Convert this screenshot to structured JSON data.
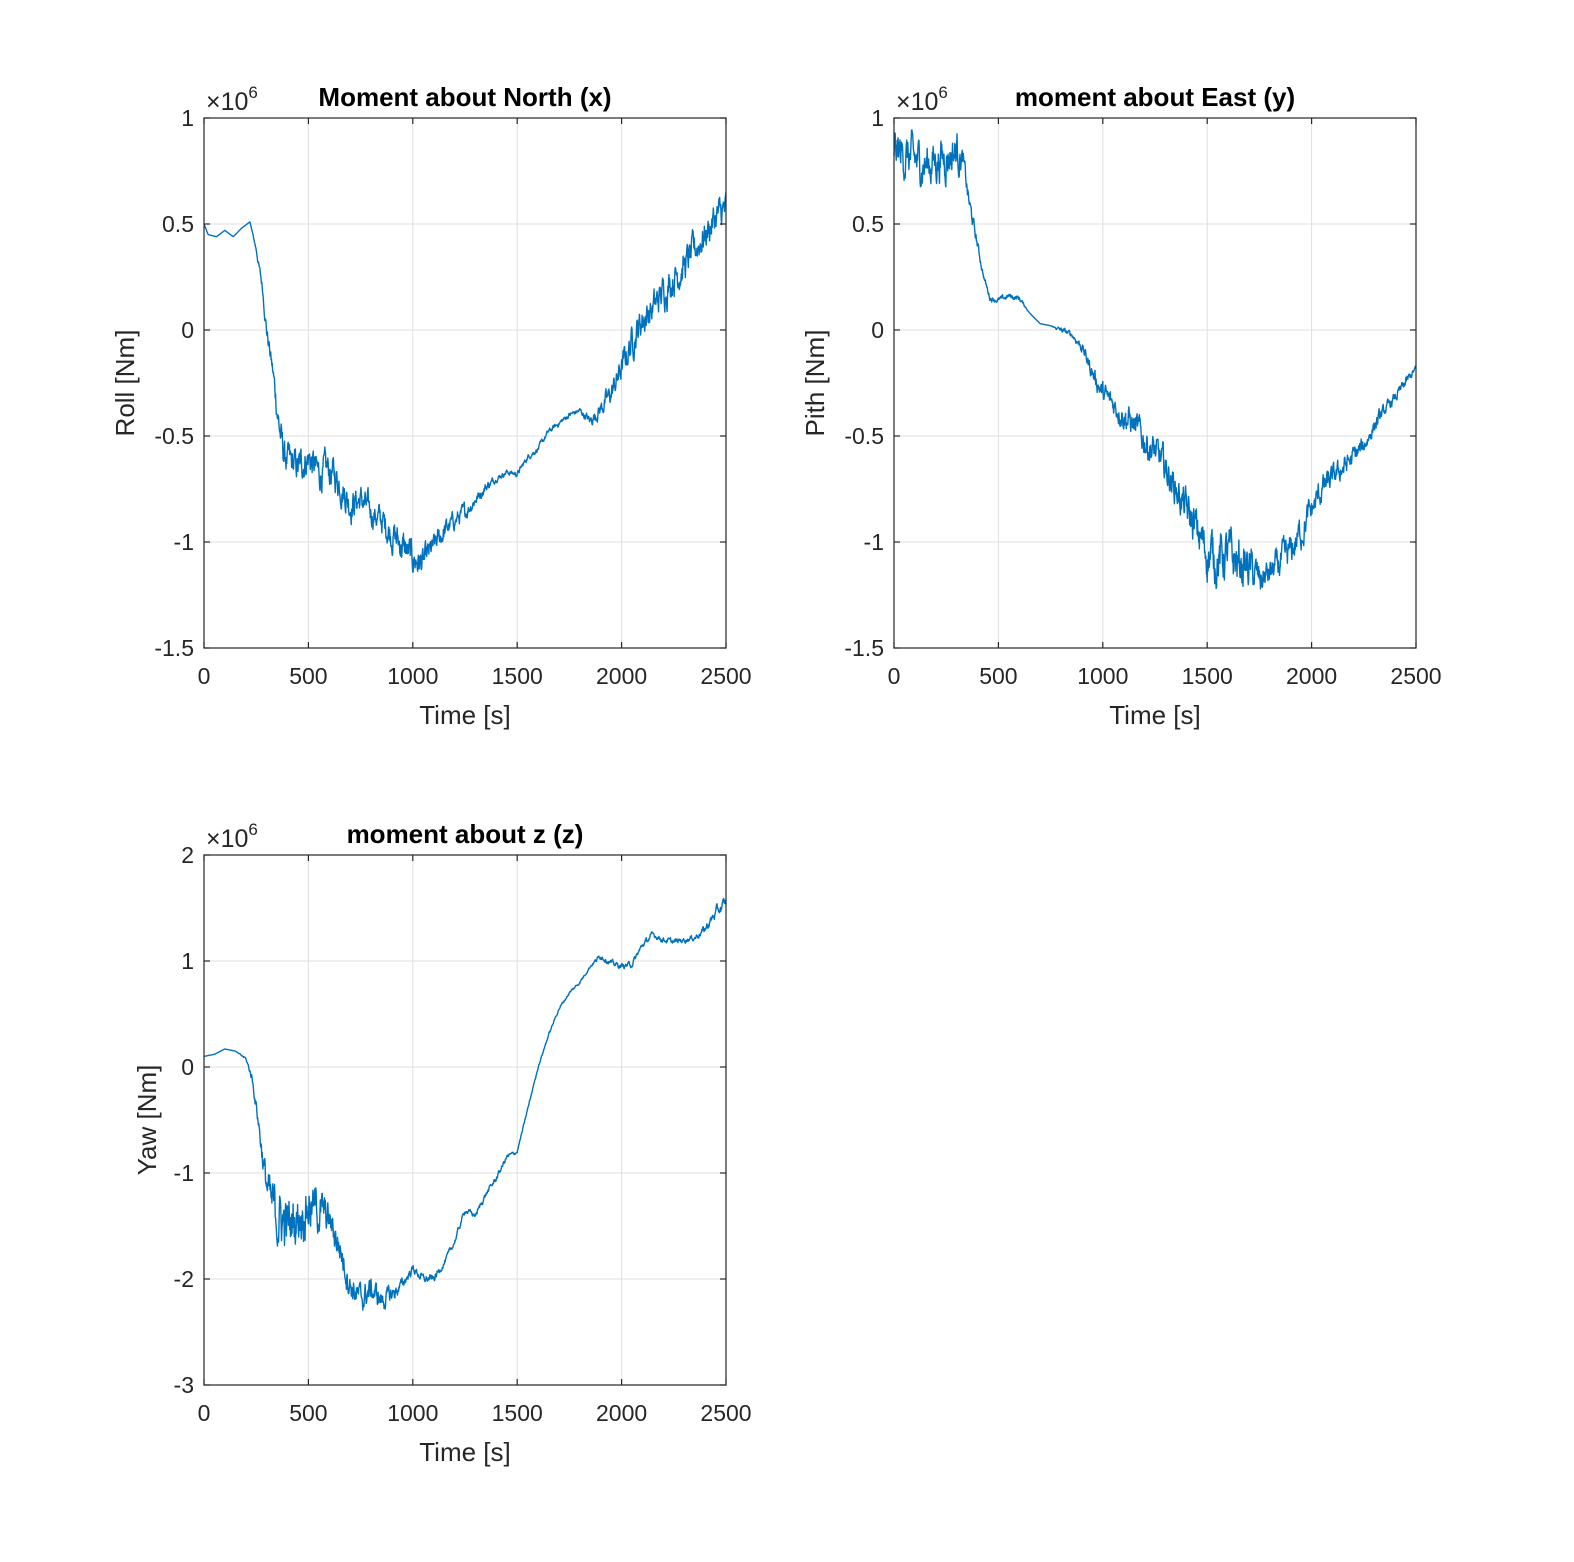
{
  "colors": {
    "line": "#0072bd",
    "background": "#ffffff",
    "axis": "#262626",
    "grid": "#dfdfdf"
  },
  "chart_data": [
    {
      "type": "line",
      "title": "Moment about North (x)",
      "xlabel": "Time [s]",
      "ylabel": "Roll [Nm]",
      "exponent_label": "×10",
      "exponent_power": "6",
      "xlim": [
        0,
        2500
      ],
      "ylim": [
        -1.5,
        1
      ],
      "xticks": [
        0,
        500,
        1000,
        1500,
        2000,
        2500
      ],
      "xtick_labels": [
        "0",
        "500",
        "1000",
        "1500",
        "2000",
        "2500"
      ],
      "yticks": [
        -1.5,
        -1,
        -0.5,
        0,
        0.5,
        1
      ],
      "ytick_labels": [
        "-1.5",
        "-1",
        "-0.5",
        "0",
        "0.5",
        "1"
      ],
      "grid": true,
      "noise_scale": 1000000.0,
      "series": [
        {
          "x": [
            0,
            20,
            60,
            100,
            140,
            180,
            220,
            250,
            280,
            300,
            330,
            360,
            380,
            400,
            450,
            500,
            550,
            600,
            650,
            700,
            750,
            800,
            850,
            900,
            950,
            1000,
            1050,
            1100,
            1150,
            1200,
            1250,
            1300,
            1350,
            1400,
            1450,
            1500,
            1550,
            1600,
            1650,
            1700,
            1750,
            1800,
            1850,
            1900,
            1950,
            2000,
            2050,
            2100,
            2150,
            2200,
            2250,
            2300,
            2350,
            2400,
            2450,
            2500
          ],
          "y": [
            0.5,
            0.45,
            0.44,
            0.47,
            0.44,
            0.48,
            0.51,
            0.38,
            0.2,
            0.0,
            -0.2,
            -0.45,
            -0.58,
            -0.62,
            -0.65,
            -0.6,
            -0.68,
            -0.66,
            -0.72,
            -0.82,
            -0.8,
            -0.86,
            -0.9,
            -0.96,
            -1.02,
            -1.08,
            -1.1,
            -1.02,
            -0.95,
            -0.9,
            -0.86,
            -0.8,
            -0.74,
            -0.7,
            -0.67,
            -0.68,
            -0.6,
            -0.56,
            -0.48,
            -0.44,
            -0.4,
            -0.38,
            -0.43,
            -0.37,
            -0.3,
            -0.18,
            -0.05,
            0.05,
            0.1,
            0.18,
            0.25,
            0.3,
            0.38,
            0.45,
            0.53,
            0.57
          ],
          "noise": [
            0.0,
            0.0,
            0.0,
            0.0,
            0.0,
            0.0,
            0.0,
            0.01,
            0.02,
            0.03,
            0.04,
            0.06,
            0.06,
            0.06,
            0.06,
            0.06,
            0.06,
            0.06,
            0.06,
            0.06,
            0.05,
            0.05,
            0.05,
            0.06,
            0.06,
            0.06,
            0.05,
            0.04,
            0.04,
            0.03,
            0.03,
            0.02,
            0.02,
            0.01,
            0.01,
            0.01,
            0.01,
            0.01,
            0.01,
            0.01,
            0.01,
            0.01,
            0.02,
            0.03,
            0.04,
            0.05,
            0.06,
            0.06,
            0.06,
            0.06,
            0.06,
            0.06,
            0.06,
            0.06,
            0.06,
            0.06
          ]
        }
      ]
    },
    {
      "type": "line",
      "title": "moment about East (y)",
      "xlabel": "Time [s]",
      "ylabel": "Pith [Nm]",
      "exponent_label": "×10",
      "exponent_power": "6",
      "xlim": [
        0,
        2500
      ],
      "ylim": [
        -1.5,
        1
      ],
      "xticks": [
        0,
        500,
        1000,
        1500,
        2000,
        2500
      ],
      "xtick_labels": [
        "0",
        "500",
        "1000",
        "1500",
        "2000",
        "2500"
      ],
      "yticks": [
        -1.5,
        -1,
        -0.5,
        0,
        0.5,
        1
      ],
      "ytick_labels": [
        "-1.5",
        "-1",
        "-0.5",
        "0",
        "0.5",
        "1"
      ],
      "grid": true,
      "noise_scale": 1000000.0,
      "series": [
        {
          "x": [
            0,
            50,
            100,
            150,
            200,
            250,
            300,
            330,
            360,
            400,
            430,
            460,
            500,
            550,
            600,
            650,
            700,
            750,
            800,
            850,
            900,
            950,
            1000,
            1050,
            1100,
            1150,
            1200,
            1250,
            1300,
            1350,
            1400,
            1450,
            1500,
            1550,
            1600,
            1650,
            1700,
            1750,
            1800,
            1850,
            1900,
            1950,
            2000,
            2050,
            2100,
            2150,
            2200,
            2250,
            2300,
            2350,
            2400,
            2450,
            2500
          ],
          "y": [
            0.85,
            0.82,
            0.8,
            0.78,
            0.8,
            0.82,
            0.85,
            0.8,
            0.6,
            0.4,
            0.25,
            0.15,
            0.14,
            0.16,
            0.15,
            0.08,
            0.03,
            0.02,
            0.0,
            -0.02,
            -0.08,
            -0.2,
            -0.3,
            -0.35,
            -0.4,
            -0.45,
            -0.52,
            -0.58,
            -0.65,
            -0.75,
            -0.85,
            -0.95,
            -1.05,
            -1.08,
            -1.06,
            -1.1,
            -1.12,
            -1.18,
            -1.15,
            -1.1,
            -1.05,
            -0.95,
            -0.85,
            -0.75,
            -0.7,
            -0.65,
            -0.6,
            -0.55,
            -0.45,
            -0.38,
            -0.32,
            -0.25,
            -0.18
          ],
          "noise": [
            0.08,
            0.08,
            0.08,
            0.08,
            0.08,
            0.08,
            0.08,
            0.04,
            0.03,
            0.02,
            0.01,
            0.01,
            0.01,
            0.01,
            0.01,
            0.0,
            0.0,
            0.0,
            0.01,
            0.01,
            0.02,
            0.03,
            0.04,
            0.04,
            0.05,
            0.05,
            0.06,
            0.06,
            0.06,
            0.06,
            0.07,
            0.08,
            0.09,
            0.09,
            0.09,
            0.09,
            0.08,
            0.06,
            0.05,
            0.06,
            0.06,
            0.06,
            0.05,
            0.05,
            0.04,
            0.04,
            0.04,
            0.03,
            0.03,
            0.02,
            0.02,
            0.02,
            0.01
          ]
        }
      ]
    },
    {
      "type": "line",
      "title": "moment about z (z)",
      "xlabel": "Time [s]",
      "ylabel": "Yaw [Nm]",
      "exponent_label": "×10",
      "exponent_power": "6",
      "xlim": [
        0,
        2500
      ],
      "ylim": [
        -3,
        2
      ],
      "xticks": [
        0,
        500,
        1000,
        1500,
        2000,
        2500
      ],
      "xtick_labels": [
        "0",
        "500",
        "1000",
        "1500",
        "2000",
        "2500"
      ],
      "yticks": [
        -3,
        -2,
        -1,
        0,
        1,
        2
      ],
      "ytick_labels": [
        "-3",
        "-2",
        "-1",
        "0",
        "1",
        "2"
      ],
      "grid": true,
      "noise_scale": 1000000.0,
      "series": [
        {
          "x": [
            0,
            50,
            100,
            150,
            200,
            230,
            260,
            290,
            320,
            350,
            400,
            450,
            500,
            550,
            600,
            650,
            700,
            750,
            800,
            850,
            900,
            950,
            1000,
            1050,
            1100,
            1150,
            1200,
            1250,
            1300,
            1350,
            1400,
            1450,
            1500,
            1550,
            1600,
            1650,
            1700,
            1750,
            1800,
            1850,
            1900,
            1950,
            2000,
            2050,
            2100,
            2150,
            2200,
            2250,
            2300,
            2350,
            2400,
            2450,
            2500
          ],
          "y": [
            0.1,
            0.12,
            0.17,
            0.15,
            0.08,
            -0.1,
            -0.5,
            -1.0,
            -1.3,
            -1.4,
            -1.5,
            -1.4,
            -1.3,
            -1.35,
            -1.45,
            -1.7,
            -2.05,
            -2.2,
            -2.1,
            -2.2,
            -2.15,
            -2.05,
            -1.9,
            -2.0,
            -2.0,
            -1.85,
            -1.65,
            -1.35,
            -1.4,
            -1.2,
            -1.05,
            -0.85,
            -0.8,
            -0.4,
            0.0,
            0.3,
            0.55,
            0.7,
            0.8,
            0.95,
            1.05,
            0.98,
            0.95,
            0.97,
            1.15,
            1.25,
            1.2,
            1.18,
            1.2,
            1.22,
            1.3,
            1.45,
            1.55
          ],
          "noise": [
            0.0,
            0.0,
            0.0,
            0.0,
            0.01,
            0.03,
            0.06,
            0.12,
            0.18,
            0.2,
            0.2,
            0.2,
            0.18,
            0.16,
            0.12,
            0.12,
            0.1,
            0.1,
            0.09,
            0.08,
            0.06,
            0.04,
            0.03,
            0.03,
            0.03,
            0.02,
            0.02,
            0.02,
            0.02,
            0.02,
            0.02,
            0.02,
            0.01,
            0.01,
            0.01,
            0.01,
            0.01,
            0.01,
            0.01,
            0.01,
            0.02,
            0.02,
            0.02,
            0.02,
            0.02,
            0.02,
            0.02,
            0.02,
            0.02,
            0.02,
            0.03,
            0.04,
            0.04
          ]
        }
      ]
    }
  ]
}
